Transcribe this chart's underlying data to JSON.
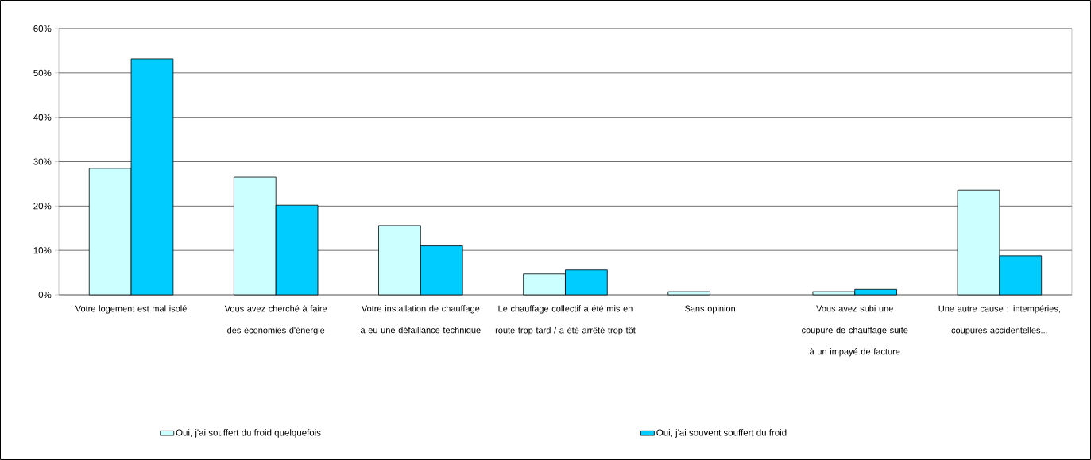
{
  "chart_data": {
    "type": "bar",
    "categories": [
      "Votre logement est mal isolé",
      "Vous avez cherché à faire des économies d'énergie",
      "Votre installation de chauffage a eu une défaillance technique",
      "Le chauffage collectif a été mis en route trop tard / a été arrêté trop tôt",
      "Sans opinion",
      "Vous avez subi une coupure de chauffage suite à un impayé de facture",
      "Une autre cause : intempéries, coupures accidentelles..."
    ],
    "series": [
      {
        "name": "Oui, j'ai souffert du froid quelquefois",
        "color": "#ccffff",
        "values": [
          28.5,
          26.5,
          15.6,
          4.7,
          0.7,
          0.7,
          23.6
        ]
      },
      {
        "name": "Oui, j'ai souvent souffert du froid",
        "color": "#00ccff",
        "values": [
          53.2,
          20.2,
          11.0,
          5.6,
          null,
          1.2,
          8.8
        ]
      }
    ],
    "ylim": [
      0,
      60
    ],
    "yticks": [
      {
        "value": 0,
        "label": "0%"
      },
      {
        "value": 10,
        "label": "10%"
      },
      {
        "value": 20,
        "label": "20%"
      },
      {
        "value": 30,
        "label": "30%"
      },
      {
        "value": 40,
        "label": "40%"
      },
      {
        "value": 50,
        "label": "50%"
      },
      {
        "value": 60,
        "label": "60%"
      }
    ],
    "grid": "y",
    "legend": "bottom"
  }
}
